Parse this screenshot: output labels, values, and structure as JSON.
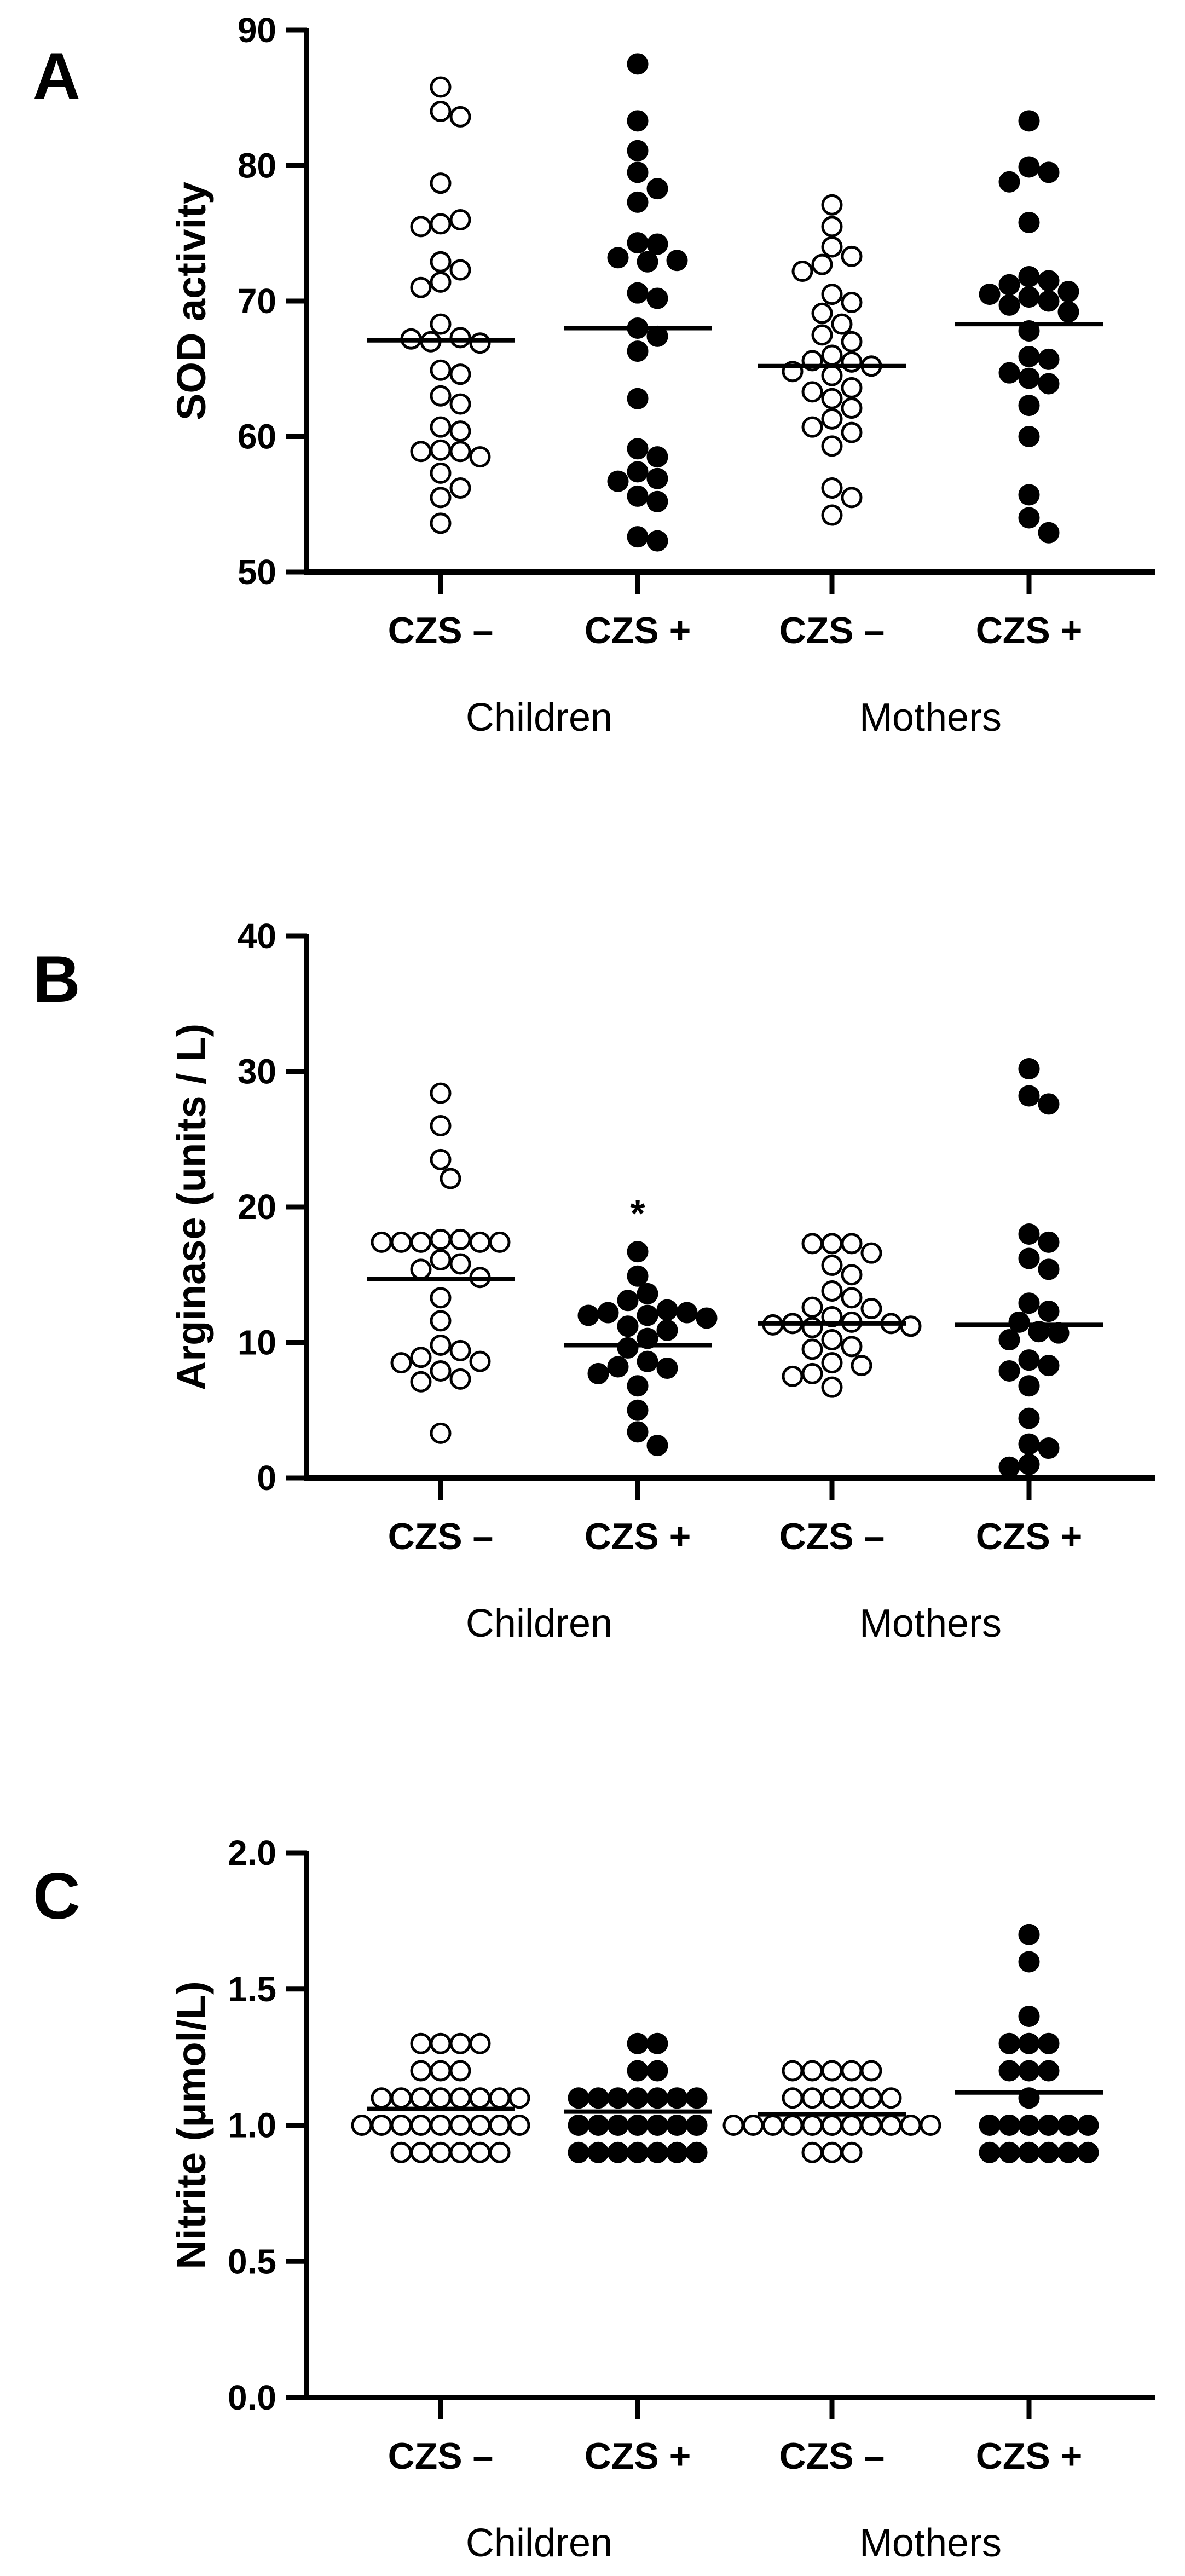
{
  "chart_data": [
    {
      "type": "scatter",
      "panel": "A",
      "ylabel": "SOD activity",
      "ylim": [
        50,
        90
      ],
      "yticks": [
        50,
        60,
        70,
        80,
        90
      ],
      "ytick_labels": [
        "50",
        "60",
        "70",
        "80",
        "90"
      ],
      "categories": [
        "CZS –",
        "CZS +",
        "CZS –",
        "CZS +"
      ],
      "groups": [
        "Children",
        "Mothers"
      ],
      "series": [
        {
          "name": "Children CZS –",
          "filled": false,
          "mean": 67.1,
          "values": [
            84.0,
            85.8,
            83.6,
            78.7,
            75.7,
            76.0,
            75.5,
            72.9,
            72.3,
            71.4,
            71.0,
            68.3,
            67.3,
            67.0,
            67.2,
            66.9,
            64.9,
            64.6,
            63.0,
            62.4,
            60.7,
            60.4,
            59.0,
            58.9,
            58.9,
            58.5,
            57.3,
            56.2,
            55.5,
            53.6
          ]
        },
        {
          "name": "Children CZS +",
          "filled": true,
          "mean": 68.0,
          "values": [
            87.5,
            83.3,
            81.1,
            79.5,
            78.3,
            77.3,
            74.3,
            74.2,
            73.2,
            73.0,
            72.9,
            70.6,
            70.2,
            68.0,
            67.4,
            66.3,
            62.8,
            59.1,
            58.5,
            57.4,
            56.9,
            56.7,
            55.6,
            55.2,
            52.6,
            52.3
          ]
        },
        {
          "name": "Mothers CZS –",
          "filled": false,
          "mean": 65.2,
          "values": [
            77.1,
            75.5,
            74.0,
            73.3,
            72.7,
            72.2,
            70.5,
            69.9,
            69.1,
            68.3,
            67.5,
            67.0,
            66.0,
            65.6,
            65.5,
            65.2,
            64.8,
            64.5,
            63.6,
            63.3,
            62.8,
            62.1,
            61.3,
            60.7,
            60.3,
            59.3,
            56.2,
            55.5,
            54.2
          ]
        },
        {
          "name": "Mothers CZS +",
          "filled": true,
          "mean": 68.3,
          "values": [
            83.3,
            79.9,
            79.5,
            78.8,
            75.8,
            71.8,
            71.5,
            71.2,
            70.7,
            70.5,
            70.3,
            70.0,
            69.7,
            69.2,
            67.8,
            65.9,
            65.7,
            64.7,
            64.3,
            63.9,
            62.3,
            60.0,
            55.7,
            54.0,
            52.9
          ]
        }
      ]
    },
    {
      "type": "scatter",
      "panel": "B",
      "ylabel": "Arginase (units / L)",
      "ylim": [
        0,
        40
      ],
      "yticks": [
        0,
        10,
        20,
        30,
        40
      ],
      "ytick_labels": [
        "0",
        "10",
        "20",
        "30",
        "40"
      ],
      "categories": [
        "CZS –",
        "CZS +",
        "CZS –",
        "CZS +"
      ],
      "groups": [
        "Children",
        "Mothers"
      ],
      "annotations": [
        {
          "text": "*",
          "category_index": 1,
          "y": 19.7
        }
      ],
      "series": [
        {
          "name": "Children CZS –",
          "filled": false,
          "mean": 14.7,
          "values": [
            28.4,
            26.0,
            23.5,
            22.1,
            17.6,
            17.6,
            17.4,
            17.4,
            17.4,
            17.4,
            17.4,
            16.1,
            15.8,
            15.4,
            14.8,
            13.3,
            11.6,
            9.8,
            9.4,
            8.9,
            8.6,
            8.5,
            7.9,
            7.3,
            7.1,
            3.3
          ]
        },
        {
          "name": "Children CZS +",
          "filled": true,
          "mean": 9.8,
          "values": [
            16.7,
            14.9,
            13.6,
            13.1,
            12.4,
            12.2,
            12.2,
            12.0,
            12.0,
            11.8,
            11.2,
            10.9,
            10.3,
            9.6,
            8.6,
            8.2,
            8.1,
            7.7,
            6.8,
            5.0,
            3.4,
            2.4
          ]
        },
        {
          "name": "Mothers CZS –",
          "filled": false,
          "mean": 11.4,
          "values": [
            17.3,
            17.3,
            17.3,
            16.6,
            15.7,
            15.0,
            13.8,
            13.3,
            12.6,
            12.5,
            11.9,
            11.5,
            11.4,
            11.4,
            11.3,
            11.2,
            11.1,
            10.2,
            9.7,
            9.5,
            8.5,
            8.3,
            7.7,
            7.5,
            6.7
          ]
        },
        {
          "name": "Mothers CZS +",
          "filled": true,
          "mean": 11.3,
          "values": [
            30.2,
            28.2,
            27.6,
            18.0,
            17.4,
            16.2,
            15.4,
            12.9,
            12.3,
            11.5,
            10.8,
            10.7,
            10.2,
            8.7,
            8.3,
            7.9,
            6.8,
            4.4,
            2.5,
            2.2,
            1.0,
            0.8
          ]
        }
      ]
    },
    {
      "type": "scatter",
      "panel": "C",
      "ylabel": "Nitrite (μmol/L)",
      "ylim": [
        0,
        2.0
      ],
      "yticks": [
        0,
        0.5,
        1.0,
        1.5,
        2.0
      ],
      "ytick_labels": [
        "0.0",
        "0.5",
        "1.0",
        "1.5",
        "2.0"
      ],
      "categories": [
        "CZS –",
        "CZS +",
        "CZS –",
        "CZS +"
      ],
      "groups": [
        "Children",
        "Mothers"
      ],
      "series": [
        {
          "name": "Children CZS –",
          "filled": false,
          "mean": 1.06,
          "values": [
            1.3,
            1.3,
            1.3,
            1.3,
            1.2,
            1.2,
            1.2,
            1.1,
            1.1,
            1.1,
            1.1,
            1.1,
            1.1,
            1.1,
            1.1,
            1.0,
            1.0,
            1.0,
            1.0,
            1.0,
            1.0,
            1.0,
            1.0,
            1.0,
            0.9,
            0.9,
            0.9,
            0.9,
            0.9,
            0.9
          ]
        },
        {
          "name": "Children CZS +",
          "filled": true,
          "mean": 1.05,
          "values": [
            1.3,
            1.3,
            1.2,
            1.2,
            1.1,
            1.1,
            1.1,
            1.1,
            1.1,
            1.1,
            1.1,
            1.0,
            1.0,
            1.0,
            1.0,
            1.0,
            1.0,
            1.0,
            0.9,
            0.9,
            0.9,
            0.9,
            0.9,
            0.9,
            0.9
          ]
        },
        {
          "name": "Mothers CZS –",
          "filled": false,
          "mean": 1.04,
          "values": [
            1.2,
            1.2,
            1.2,
            1.2,
            1.2,
            1.1,
            1.1,
            1.1,
            1.1,
            1.1,
            1.1,
            1.0,
            1.0,
            1.0,
            1.0,
            1.0,
            1.0,
            1.0,
            1.0,
            1.0,
            1.0,
            1.0,
            0.9,
            0.9,
            0.9
          ]
        },
        {
          "name": "Mothers CZS +",
          "filled": true,
          "mean": 1.12,
          "values": [
            1.7,
            1.6,
            1.4,
            1.3,
            1.3,
            1.3,
            1.2,
            1.2,
            1.2,
            1.1,
            1.0,
            1.0,
            1.0,
            1.0,
            1.0,
            1.0,
            0.9,
            0.9,
            0.9,
            0.9,
            0.9,
            0.9
          ]
        }
      ]
    }
  ]
}
